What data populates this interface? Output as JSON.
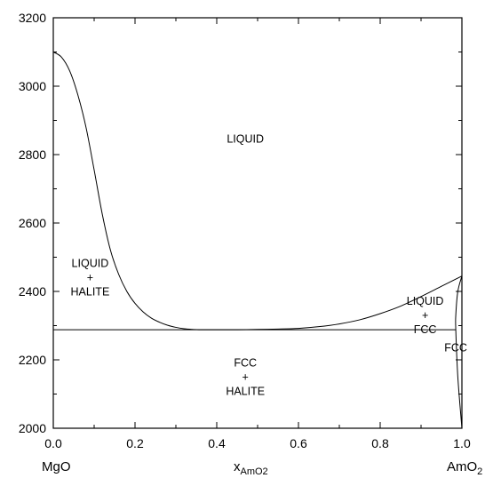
{
  "chart_data": {
    "type": "line",
    "title": "",
    "xlim": [
      0,
      1
    ],
    "ylim": [
      2000,
      3200
    ],
    "x_ticks": [
      "0.0",
      "0.2",
      "0.4",
      "0.6",
      "0.8",
      "1.0"
    ],
    "x_tick_values": [
      0,
      0.2,
      0.4,
      0.6,
      0.8,
      1.0
    ],
    "y_ticks": [
      "2000",
      "2200",
      "2400",
      "2600",
      "2800",
      "3000",
      "3200"
    ],
    "y_tick_values": [
      2000,
      2200,
      2400,
      2600,
      2800,
      3000,
      3200
    ],
    "x_left_label": "MgO",
    "x_right_label_base": "AmO",
    "x_right_label_sub": "2",
    "xlabel_base": "x",
    "xlabel_sub": "AmO2",
    "grid": false,
    "series": [
      {
        "x": [
          0.0,
          0.02,
          0.04,
          0.06,
          0.08,
          0.1,
          0.12,
          0.14,
          0.16,
          0.18,
          0.2,
          0.22,
          0.24,
          0.26,
          0.28,
          0.3,
          0.32,
          0.34,
          0.36
        ],
        "y": [
          3100,
          3085,
          3045,
          2975,
          2880,
          2755,
          2625,
          2520,
          2450,
          2400,
          2365,
          2340,
          2322,
          2310,
          2301,
          2295,
          2291,
          2289,
          2288
        ]
      },
      {
        "x": [
          0.36,
          0.4,
          0.45,
          0.5,
          0.55,
          0.6,
          0.65,
          0.7,
          0.75,
          0.8,
          0.85,
          0.9,
          0.95,
          1.0
        ],
        "y": [
          2288,
          2288,
          2288,
          2289,
          2290,
          2292,
          2297,
          2305,
          2317,
          2335,
          2357,
          2385,
          2415,
          2445
        ]
      },
      {
        "x": [
          0.0,
          0.985
        ],
        "y": [
          2288,
          2288
        ]
      },
      {
        "x": [
          1.0,
          0.99,
          0.985,
          0.985,
          0.99,
          1.0
        ],
        "y": [
          2445,
          2400,
          2330,
          2288,
          2150,
          2000
        ]
      }
    ],
    "annotations": [
      {
        "lines": [
          "LIQUID"
        ],
        "x": 0.47,
        "y": 2845
      },
      {
        "lines": [
          "LIQUID",
          "+",
          "HALITE"
        ],
        "x": 0.09,
        "y": 2440
      },
      {
        "lines": [
          "LIQUID",
          "+",
          "FCC"
        ],
        "x": 0.91,
        "y": 2330
      },
      {
        "lines": [
          "FCC",
          "+",
          "HALITE"
        ],
        "x": 0.47,
        "y": 2150
      },
      {
        "lines": [
          "FCC"
        ],
        "x": 0.985,
        "y": 2235
      }
    ]
  }
}
